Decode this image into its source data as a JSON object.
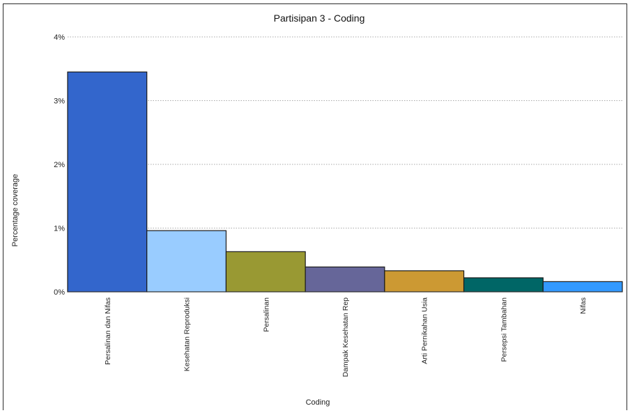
{
  "chart_data": {
    "type": "bar",
    "title": "Partisipan 3 - Coding",
    "xlabel": "Coding",
    "ylabel": "Percentage coverage",
    "ylim": [
      0,
      4
    ],
    "yticks": [
      "0%",
      "1%",
      "2%",
      "3%",
      "4%"
    ],
    "grid": true,
    "categories": [
      "Persalinan dan Nifas",
      "Kesehatan Reproduksi",
      "Persalinan",
      "Dampak Kesehatan Rep",
      "Arti Pernikahan Usia",
      "Persepsi Tambahan",
      "Nifas"
    ],
    "values": [
      3.45,
      0.96,
      0.63,
      0.39,
      0.33,
      0.22,
      0.16
    ],
    "colors": [
      "#3366cc",
      "#99ccff",
      "#999933",
      "#666699",
      "#cc9933",
      "#006666",
      "#3399ff"
    ]
  }
}
